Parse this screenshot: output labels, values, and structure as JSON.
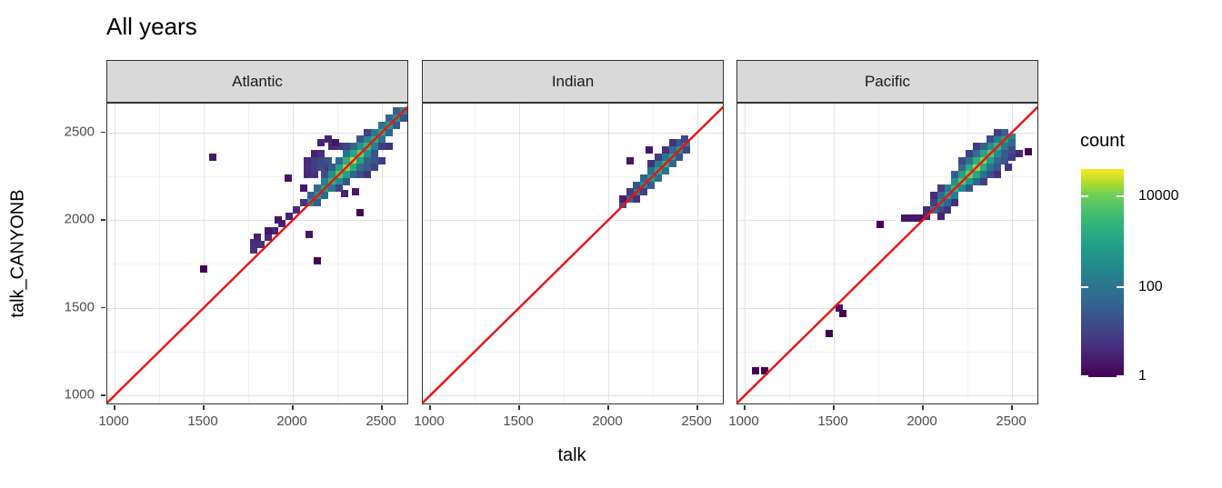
{
  "title": "All years",
  "axes": {
    "x_title": "talk",
    "y_title": "talk_CANYONB",
    "x_tick_values": [
      1000,
      1500,
      2000,
      2500
    ],
    "x_minor_values": [
      1250,
      1750,
      2250
    ],
    "y_tick_values": [
      1000,
      1500,
      2000,
      2500
    ],
    "y_minor_values": [
      1250,
      1750,
      2250
    ]
  },
  "legend": {
    "title": "count",
    "tick_values": [
      10000,
      100,
      1
    ]
  },
  "colors": {
    "identity_line": "#ee1111",
    "panel_border": "#333333",
    "strip_fill": "#d9d9d9",
    "grid_major": "#e2e2e2",
    "grid_minor": "#f1f1f1",
    "tick_text": "#4d4d4d",
    "viridis_low": "#440154",
    "viridis_mid": "#26828e",
    "viridis_high": "#fde725"
  },
  "chart_data": {
    "type": "heatmap",
    "subtype": "binned-2d-scatter-facets",
    "title": "All years",
    "xlabel": "talk",
    "ylabel": "talk_CANYONB",
    "x_range": [
      959,
      2653
    ],
    "y_range": [
      944,
      2664
    ],
    "bin_size_units": 40,
    "identity_line": true,
    "legend_position": "right",
    "color_scale": {
      "type": "log10",
      "domain": [
        1,
        38000
      ],
      "palette": "viridis",
      "legend_ticks": [
        10000,
        100,
        1
      ]
    },
    "facets": [
      {
        "name": "Atlantic",
        "bins": [
          [
            2100,
            2100,
            300
          ],
          [
            2140,
            2140,
            500
          ],
          [
            2180,
            2180,
            900
          ],
          [
            2220,
            2220,
            2500
          ],
          [
            2260,
            2260,
            6000
          ],
          [
            2300,
            2300,
            13000
          ],
          [
            2340,
            2340,
            18000
          ],
          [
            2380,
            2380,
            9000
          ],
          [
            2420,
            2420,
            3000
          ],
          [
            2460,
            2460,
            1500
          ],
          [
            2500,
            2500,
            1100
          ],
          [
            2540,
            2540,
            800
          ],
          [
            2580,
            2580,
            500
          ],
          [
            2620,
            2620,
            250
          ],
          [
            2100,
            2140,
            40
          ],
          [
            2140,
            2180,
            80
          ],
          [
            2180,
            2220,
            150
          ],
          [
            2220,
            2260,
            400
          ],
          [
            2260,
            2300,
            900
          ],
          [
            2300,
            2340,
            1800
          ],
          [
            2340,
            2380,
            1200
          ],
          [
            2380,
            2420,
            500
          ],
          [
            2420,
            2460,
            250
          ],
          [
            2460,
            2500,
            120
          ],
          [
            2500,
            2540,
            90
          ],
          [
            2540,
            2580,
            60
          ],
          [
            2580,
            2620,
            40
          ],
          [
            2140,
            2100,
            30
          ],
          [
            2180,
            2140,
            60
          ],
          [
            2220,
            2180,
            130
          ],
          [
            2260,
            2220,
            350
          ],
          [
            2300,
            2260,
            800
          ],
          [
            2340,
            2300,
            1500
          ],
          [
            2380,
            2340,
            900
          ],
          [
            2420,
            2380,
            400
          ],
          [
            2460,
            2420,
            180
          ],
          [
            2500,
            2460,
            90
          ],
          [
            2540,
            2500,
            50
          ],
          [
            2580,
            2540,
            30
          ],
          [
            2620,
            2580,
            25
          ],
          [
            2180,
            2260,
            15
          ],
          [
            2220,
            2300,
            30
          ],
          [
            2260,
            2340,
            60
          ],
          [
            2300,
            2380,
            80
          ],
          [
            2340,
            2420,
            50
          ],
          [
            2380,
            2460,
            25
          ],
          [
            2420,
            2500,
            10
          ],
          [
            2180,
            2300,
            8
          ],
          [
            2260,
            2420,
            6
          ],
          [
            2300,
            2420,
            12
          ],
          [
            2220,
            2420,
            4
          ],
          [
            2160,
            2440,
            3
          ],
          [
            2200,
            2460,
            3
          ],
          [
            2240,
            2440,
            2
          ],
          [
            2260,
            2180,
            10
          ],
          [
            2300,
            2220,
            25
          ],
          [
            2340,
            2260,
            50
          ],
          [
            2380,
            2300,
            70
          ],
          [
            2420,
            2340,
            40
          ],
          [
            2460,
            2380,
            20
          ],
          [
            2500,
            2420,
            8
          ],
          [
            2380,
            2260,
            15
          ],
          [
            2420,
            2300,
            30
          ],
          [
            2460,
            2340,
            25
          ],
          [
            2500,
            2340,
            8
          ],
          [
            2420,
            2260,
            6
          ],
          [
            2460,
            2300,
            10
          ],
          [
            2540,
            2420,
            5
          ],
          [
            2080,
            2340,
            4
          ],
          [
            2120,
            2340,
            8
          ],
          [
            2160,
            2340,
            12
          ],
          [
            2200,
            2340,
            20
          ],
          [
            2120,
            2380,
            3
          ],
          [
            2160,
            2380,
            5
          ],
          [
            2080,
            2300,
            5
          ],
          [
            2120,
            2300,
            8
          ],
          [
            2160,
            2300,
            15
          ],
          [
            2080,
            2260,
            4
          ],
          [
            2120,
            2260,
            6
          ],
          [
            1780,
            1830,
            5
          ],
          [
            1780,
            1870,
            4
          ],
          [
            1800,
            1900,
            3
          ],
          [
            1820,
            1860,
            5
          ],
          [
            1860,
            1900,
            4
          ],
          [
            1900,
            1940,
            3
          ],
          [
            1940,
            1980,
            3
          ],
          [
            1980,
            2020,
            3
          ],
          [
            2020,
            2060,
            4
          ],
          [
            2060,
            2100,
            6
          ],
          [
            1860,
            1940,
            2
          ],
          [
            1920,
            2000,
            2
          ],
          [
            1550,
            2360,
            2
          ],
          [
            1500,
            1720,
            1
          ],
          [
            2140,
            1770,
            1
          ],
          [
            2090,
            1920,
            2
          ],
          [
            2380,
            2040,
            1
          ],
          [
            2350,
            2160,
            2
          ],
          [
            1975,
            2240,
            2
          ],
          [
            2290,
            2150,
            3
          ],
          [
            2060,
            2180,
            2
          ]
        ]
      },
      {
        "name": "Indian",
        "bins": [
          [
            2080,
            2090,
            20
          ],
          [
            2120,
            2120,
            60
          ],
          [
            2160,
            2160,
            150
          ],
          [
            2200,
            2200,
            350
          ],
          [
            2240,
            2240,
            700
          ],
          [
            2280,
            2280,
            1200
          ],
          [
            2320,
            2320,
            1500
          ],
          [
            2360,
            2360,
            900
          ],
          [
            2400,
            2400,
            450
          ],
          [
            2440,
            2440,
            200
          ],
          [
            2120,
            2160,
            8
          ],
          [
            2160,
            2200,
            20
          ],
          [
            2200,
            2240,
            40
          ],
          [
            2240,
            2280,
            80
          ],
          [
            2280,
            2320,
            150
          ],
          [
            2320,
            2360,
            120
          ],
          [
            2360,
            2400,
            60
          ],
          [
            2400,
            2440,
            30
          ],
          [
            2430,
            2460,
            12
          ],
          [
            2160,
            2120,
            5
          ],
          [
            2200,
            2160,
            10
          ],
          [
            2240,
            2200,
            30
          ],
          [
            2280,
            2240,
            60
          ],
          [
            2320,
            2280,
            80
          ],
          [
            2360,
            2320,
            50
          ],
          [
            2400,
            2360,
            25
          ],
          [
            2440,
            2400,
            12
          ],
          [
            2080,
            2120,
            3
          ],
          [
            2240,
            2320,
            5
          ],
          [
            2280,
            2360,
            8
          ],
          [
            2320,
            2400,
            6
          ],
          [
            2360,
            2440,
            5
          ],
          [
            2120,
            2340,
            2
          ],
          [
            2230,
            2400,
            2
          ]
        ]
      },
      {
        "name": "Pacific",
        "bins": [
          [
            2060,
            2060,
            100
          ],
          [
            2100,
            2100,
            400
          ],
          [
            2140,
            2140,
            1000
          ],
          [
            2180,
            2180,
            2500
          ],
          [
            2220,
            2220,
            6000
          ],
          [
            2260,
            2260,
            9000
          ],
          [
            2300,
            2300,
            15000
          ],
          [
            2340,
            2340,
            12000
          ],
          [
            2380,
            2380,
            6000
          ],
          [
            2420,
            2420,
            2500
          ],
          [
            2460,
            2460,
            800
          ],
          [
            2500,
            2470,
            200
          ],
          [
            2100,
            2140,
            60
          ],
          [
            2140,
            2180,
            150
          ],
          [
            2180,
            2220,
            400
          ],
          [
            2220,
            2260,
            900
          ],
          [
            2260,
            2300,
            1500
          ],
          [
            2300,
            2340,
            1800
          ],
          [
            2340,
            2380,
            1000
          ],
          [
            2380,
            2420,
            400
          ],
          [
            2420,
            2460,
            150
          ],
          [
            2460,
            2500,
            40
          ],
          [
            2140,
            2100,
            50
          ],
          [
            2180,
            2140,
            120
          ],
          [
            2220,
            2180,
            300
          ],
          [
            2260,
            2220,
            700
          ],
          [
            2300,
            2260,
            1200
          ],
          [
            2340,
            2300,
            1500
          ],
          [
            2380,
            2340,
            800
          ],
          [
            2420,
            2380,
            300
          ],
          [
            2460,
            2420,
            120
          ],
          [
            2500,
            2440,
            60
          ],
          [
            2180,
            2260,
            30
          ],
          [
            2220,
            2300,
            60
          ],
          [
            2260,
            2340,
            90
          ],
          [
            2300,
            2380,
            70
          ],
          [
            2340,
            2420,
            40
          ],
          [
            2380,
            2460,
            15
          ],
          [
            2260,
            2380,
            10
          ],
          [
            2300,
            2420,
            8
          ],
          [
            2220,
            2340,
            15
          ],
          [
            2420,
            2500,
            8
          ],
          [
            2260,
            2180,
            20
          ],
          [
            2300,
            2220,
            50
          ],
          [
            2340,
            2260,
            80
          ],
          [
            2380,
            2300,
            90
          ],
          [
            2420,
            2340,
            50
          ],
          [
            2460,
            2380,
            30
          ],
          [
            2500,
            2400,
            15
          ],
          [
            2340,
            2220,
            10
          ],
          [
            2380,
            2260,
            20
          ],
          [
            2420,
            2300,
            25
          ],
          [
            2460,
            2340,
            20
          ],
          [
            2500,
            2360,
            8
          ],
          [
            2540,
            2380,
            4
          ],
          [
            2420,
            2260,
            5
          ],
          [
            2480,
            2300,
            6
          ],
          [
            2060,
            2100,
            10
          ],
          [
            2060,
            2140,
            4
          ],
          [
            2100,
            2180,
            8
          ],
          [
            2020,
            2060,
            5
          ],
          [
            2100,
            2060,
            15
          ],
          [
            2140,
            2060,
            6
          ],
          [
            2020,
            2020,
            4
          ],
          [
            1980,
            2010,
            2
          ],
          [
            1940,
            2010,
            2
          ],
          [
            1900,
            2010,
            2
          ],
          [
            2100,
            2020,
            3
          ],
          [
            2180,
            2100,
            5
          ],
          [
            1060,
            1140,
            1
          ],
          [
            1110,
            1140,
            1
          ],
          [
            1475,
            1355,
            1
          ],
          [
            1530,
            1500,
            2
          ],
          [
            1550,
            1465,
            1
          ],
          [
            1760,
            1975,
            1
          ],
          [
            2590,
            2390,
            1
          ]
        ]
      }
    ]
  }
}
